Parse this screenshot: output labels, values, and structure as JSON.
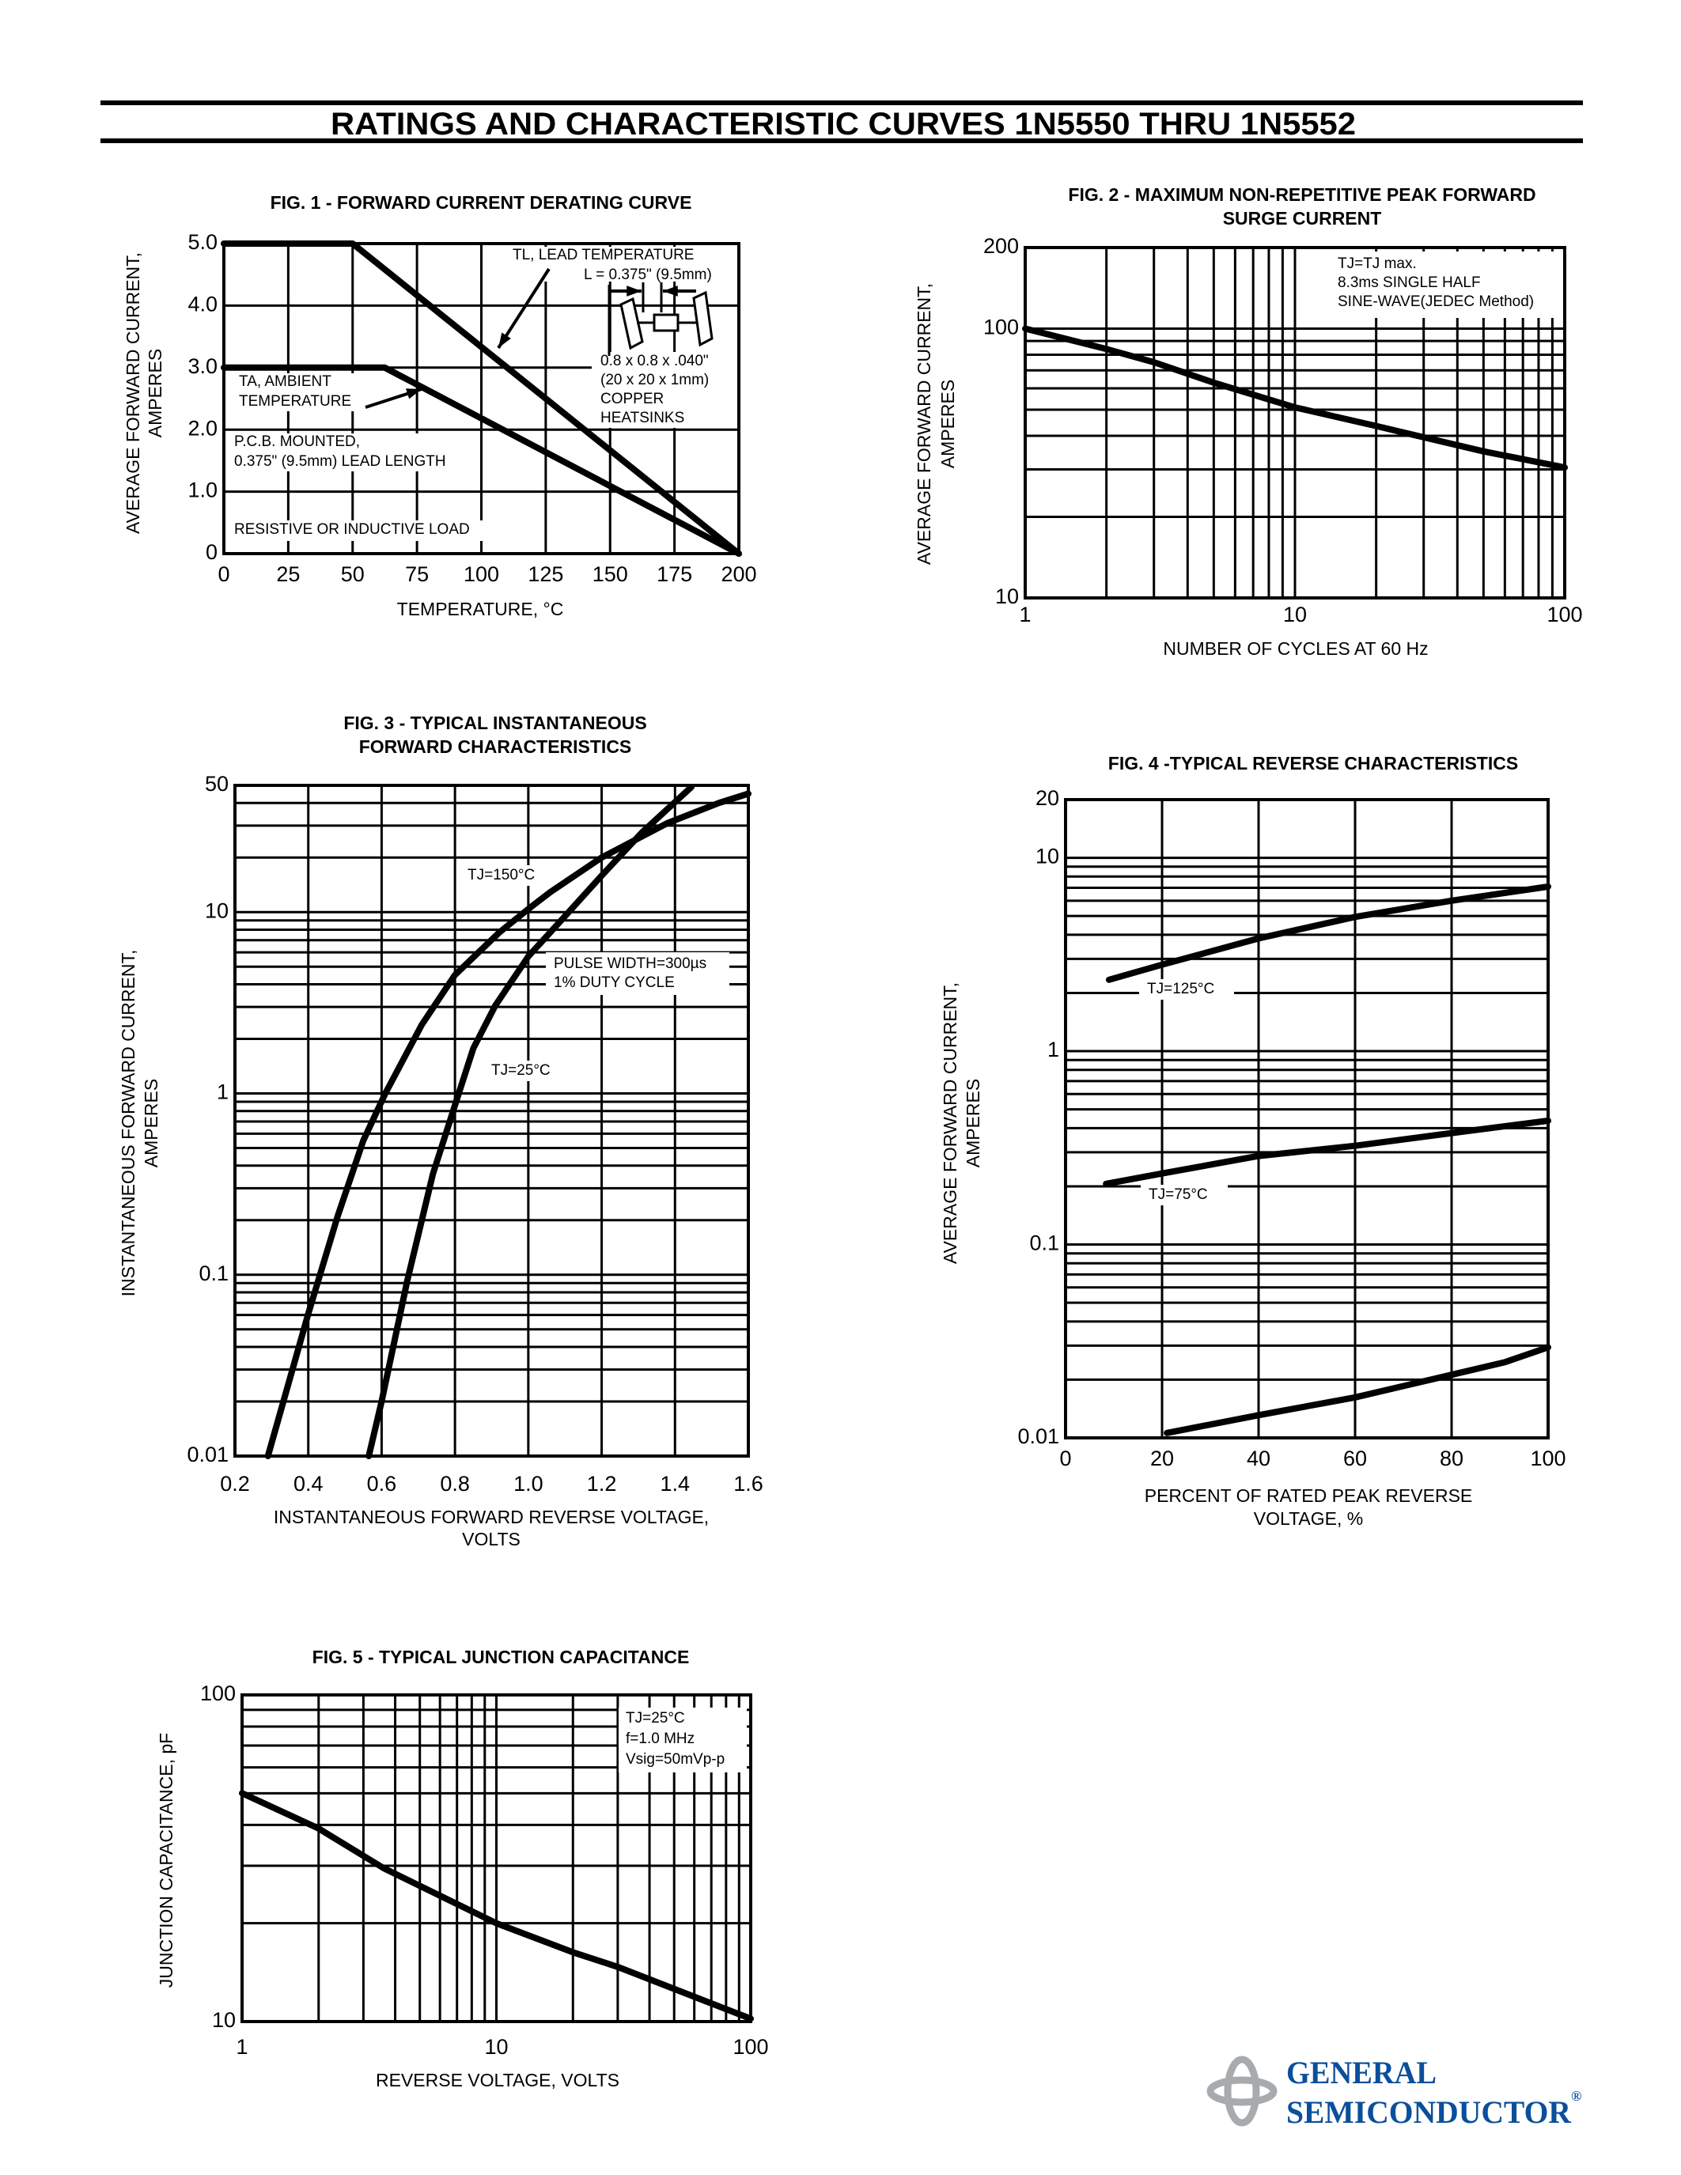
{
  "header": {
    "title": "RATINGS AND CHARACTERISTIC CURVES 1N5550 THRU 1N5552"
  },
  "logo": {
    "line1": "GENERAL",
    "line2": "SEMICONDUCTOR",
    "mark": "®",
    "color": "#0a4f9c",
    "ring_color": "#a7abae"
  },
  "chart_data": [
    {
      "type": "line",
      "title": [
        "FIG. 1 - FORWARD CURRENT DERATING CURVE"
      ],
      "xlabel": [
        "TEMPERATURE, °C"
      ],
      "ylabel": [
        "AVERAGE FORWARD CURRENT,",
        "AMPERES"
      ],
      "xscale": "linear",
      "yscale": "linear",
      "xlim": [
        0,
        200
      ],
      "ylim": [
        0,
        5
      ],
      "xticks": [
        "0",
        "25",
        "50",
        "75",
        "100",
        "125",
        "150",
        "175",
        "200"
      ],
      "yticks": [
        "0",
        "1.0",
        "2.0",
        "3.0",
        "4.0",
        "5.0"
      ],
      "grid": true,
      "series": [
        {
          "name": "TL, LEAD TEMPERATURE",
          "x": [
            0,
            50,
            200
          ],
          "y": [
            5.0,
            5.0,
            0
          ]
        },
        {
          "name": "TA, AMBIENT TEMPERATURE",
          "x": [
            0,
            62.5,
            200
          ],
          "y": [
            3.0,
            3.0,
            0
          ]
        }
      ],
      "annotations": [
        "TL, LEAD TEMPERATURE",
        "L = 0.375\" (9.5mm)",
        "0.8 x 0.8 x .040\"",
        "(20 x 20 x 1mm)",
        "COPPER",
        "HEATSINKS",
        "TA, AMBIENT",
        "TEMPERATURE",
        "P.C.B. MOUNTED,",
        "0.375\" (9.5mm) LEAD LENGTH",
        "RESISTIVE OR INDUCTIVE LOAD"
      ]
    },
    {
      "type": "line",
      "title": [
        "FIG. 2 - MAXIMUM NON-REPETITIVE PEAK FORWARD",
        "SURGE CURRENT"
      ],
      "xlabel": [
        "NUMBER OF CYCLES AT 60 Hz"
      ],
      "ylabel": [
        "AVERAGE FORWARD CURRENT,",
        "AMPERES"
      ],
      "xscale": "log",
      "yscale": "log",
      "xlim": [
        1,
        100
      ],
      "ylim": [
        10,
        200
      ],
      "xticks": [
        "1",
        "10",
        "100"
      ],
      "yticks": [
        "10",
        "100",
        "200"
      ],
      "grid": true,
      "series": [
        {
          "x": [
            1,
            2,
            3,
            5,
            10,
            20,
            30,
            50,
            100
          ],
          "y": [
            100,
            84,
            75,
            63,
            51,
            43.5,
            39.5,
            35,
            30.5
          ]
        }
      ],
      "annotations": [
        "TJ=TJ max.",
        "8.3ms SINGLE HALF",
        "SINE-WAVE(JEDEC Method)"
      ]
    },
    {
      "type": "line",
      "title": [
        "FIG. 3 - TYPICAL INSTANTANEOUS",
        "FORWARD CHARACTERISTICS"
      ],
      "xlabel": [
        "INSTANTANEOUS FORWARD REVERSE VOLTAGE,",
        "VOLTS"
      ],
      "ylabel": [
        "INSTANTANEOUS FORWARD CURRENT,",
        "AMPERES"
      ],
      "xscale": "linear",
      "yscale": "log",
      "xlim": [
        0.2,
        1.6
      ],
      "ylim": [
        0.01,
        50
      ],
      "xticks": [
        "0.2",
        "0.4",
        "0.6",
        "0.8",
        "1.0",
        "1.2",
        "1.4",
        "1.6"
      ],
      "yticks": [
        "0.01",
        "0.1",
        "1",
        "10",
        "50"
      ],
      "grid": true,
      "series": [
        {
          "name": "TJ=150°C",
          "x": [
            0.29,
            0.4,
            0.48,
            0.55,
            0.61,
            0.71,
            0.8,
            0.92,
            1.0,
            1.06,
            1.2,
            1.38,
            1.52,
            1.6
          ],
          "y": [
            0.01,
            0.061,
            0.21,
            0.55,
            1.0,
            2.4,
            4.5,
            7.7,
            10.4,
            12.9,
            20,
            31,
            40,
            45
          ]
        },
        {
          "name": "TJ=25°C",
          "x": [
            0.565,
            0.6,
            0.67,
            0.74,
            0.8,
            0.85,
            0.91,
            1.0,
            1.085,
            1.2,
            1.31,
            1.445
          ],
          "y": [
            0.01,
            0.02,
            0.093,
            0.36,
            0.86,
            1.77,
            3.05,
            5.7,
            8.8,
            15.9,
            27.5,
            49
          ]
        }
      ],
      "annotations": [
        "TJ=150°C",
        "PULSE WIDTH=300µs",
        "1% DUTY CYCLE",
        "TJ=25°C"
      ]
    },
    {
      "type": "line",
      "title": [
        "FIG. 4 -TYPICAL REVERSE CHARACTERISTICS"
      ],
      "xlabel": [
        "PERCENT OF RATED PEAK REVERSE",
        "VOLTAGE, %"
      ],
      "ylabel": [
        "AVERAGE FORWARD CURRENT,",
        "AMPERES"
      ],
      "xscale": "linear",
      "yscale": "log",
      "xlim": [
        0,
        100
      ],
      "ylim": [
        0.01,
        20
      ],
      "xticks": [
        "0",
        "20",
        "40",
        "60",
        "80",
        "100"
      ],
      "yticks": [
        "0.01",
        "0.1",
        "1",
        "10",
        "20"
      ],
      "grid": true,
      "series": [
        {
          "name": "TJ=125°C",
          "x": [
            9,
            20,
            40,
            60,
            80,
            100
          ],
          "y": [
            2.34,
            2.8,
            3.83,
            4.95,
            6.0,
            7.1
          ]
        },
        {
          "name": "TJ=75°C",
          "x": [
            8.4,
            20,
            40,
            60,
            80,
            100
          ],
          "y": [
            0.206,
            0.233,
            0.287,
            0.324,
            0.377,
            0.437
          ]
        },
        {
          "x": [
            21,
            40,
            60,
            80,
            91,
            100
          ],
          "y": [
            0.0106,
            0.0131,
            0.0162,
            0.0212,
            0.0246,
            0.0294
          ]
        }
      ],
      "annotations": [
        "TJ=125°C",
        "TJ=75°C"
      ]
    },
    {
      "type": "line",
      "title": [
        "FIG. 5 - TYPICAL JUNCTION CAPACITANCE"
      ],
      "xlabel": [
        "REVERSE VOLTAGE, VOLTS"
      ],
      "ylabel": [
        "JUNCTION CAPACITANCE, pF"
      ],
      "xscale": "log",
      "yscale": "log",
      "xlim": [
        1,
        100
      ],
      "ylim": [
        10,
        100
      ],
      "xticks": [
        "1",
        "10",
        "100"
      ],
      "yticks": [
        "10",
        "100"
      ],
      "grid": true,
      "series": [
        {
          "x": [
            1,
            2,
            3.6,
            10,
            20,
            30,
            100
          ],
          "y": [
            50,
            39,
            29.5,
            20,
            16.3,
            14.7,
            10.2
          ]
        }
      ],
      "annotations": [
        "TJ=25°C",
        "f=1.0 MHz",
        "Vsig=50mVp-p"
      ]
    }
  ]
}
